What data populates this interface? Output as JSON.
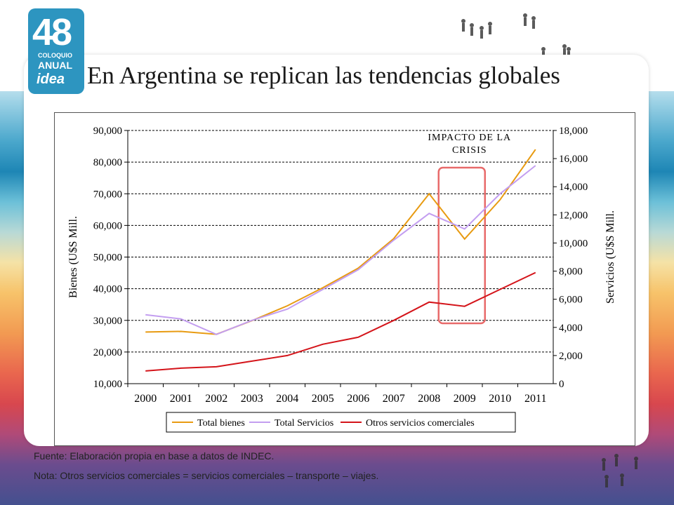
{
  "logo": {
    "number": "48",
    "line1": "COLOQUIO",
    "line2": "ANUAL",
    "line3": "idea"
  },
  "slide": {
    "title": "En Argentina se replican las tendencias globales"
  },
  "notes": {
    "source": "Fuente: Elaboración propia en base a datos de INDEC.",
    "note": "Nota: Otros servicios comerciales = servicios comerciales – transporte – viajes."
  },
  "chart_data": {
    "type": "line",
    "categories": [
      "2000",
      "2001",
      "2002",
      "2003",
      "2004",
      "2005",
      "2006",
      "2007",
      "2008",
      "2009",
      "2010",
      "2011"
    ],
    "ylabel": "Bienes (U$S Mill.",
    "y2label": "Servicios (U$S Mill.",
    "ylim": [
      10000,
      90000
    ],
    "y2lim": [
      0,
      18000
    ],
    "yticks": [
      "10,000",
      "20,000",
      "30,000",
      "40,000",
      "50,000",
      "60,000",
      "70,000",
      "80,000",
      "90,000"
    ],
    "y2ticks": [
      "0",
      "2,000",
      "4,000",
      "6,000",
      "8,000",
      "10,000",
      "12,000",
      "14,000",
      "16,000",
      "18,000"
    ],
    "annotation": {
      "line1": "IMPACTO DE LA",
      "line2": "CRISIS",
      "from": "2009",
      "color": "#e86a6a"
    },
    "series": [
      {
        "name": "Total bienes",
        "axis": "left",
        "color": "#e89b12",
        "values": [
          26300,
          26500,
          25600,
          29900,
          34600,
          40300,
          46500,
          55800,
          70000,
          55700,
          68100,
          84000
        ]
      },
      {
        "name": "Total Servicios",
        "axis": "right",
        "color": "#c39ef0",
        "values": [
          4900,
          4600,
          3500,
          4500,
          5300,
          6700,
          8100,
          10200,
          12100,
          11000,
          13500,
          15500
        ]
      },
      {
        "name": "Otros servicios comerciales",
        "axis": "right",
        "color": "#d4141a",
        "values": [
          900,
          1100,
          1200,
          1600,
          2000,
          2800,
          3300,
          4500,
          5800,
          5500,
          6700,
          7900
        ]
      }
    ],
    "grid": true,
    "legend": "bottom"
  }
}
